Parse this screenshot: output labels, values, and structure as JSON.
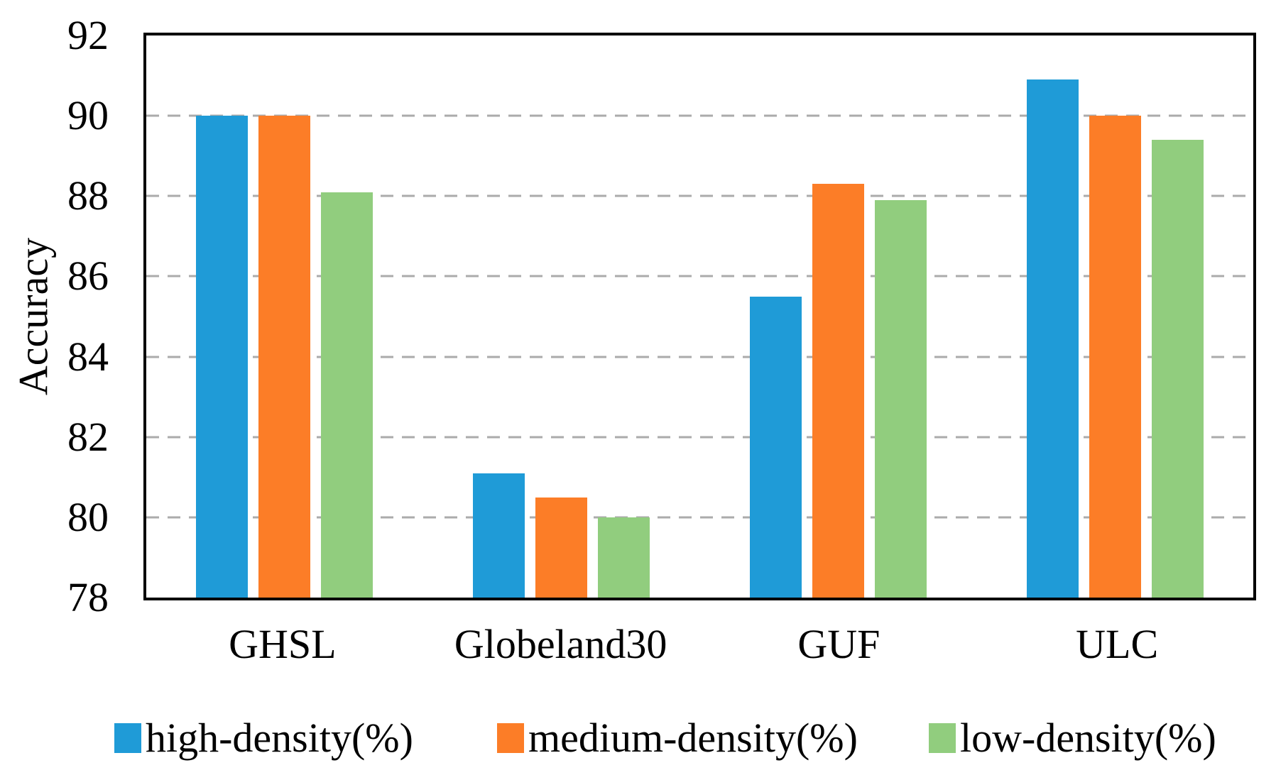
{
  "chart_data": {
    "type": "bar",
    "title": "",
    "xlabel": "",
    "ylabel": "Accuracy",
    "categories": [
      "GHSL",
      "Globeland30",
      "GUF",
      "ULC"
    ],
    "series": [
      {
        "name": "high-density(%)",
        "color": "#1F9BD7",
        "values": [
          90.0,
          81.1,
          85.5,
          90.9
        ]
      },
      {
        "name": "medium-density(%)",
        "color": "#FC7D27",
        "values": [
          90.0,
          80.5,
          88.3,
          90.0
        ]
      },
      {
        "name": "low-density(%)",
        "color": "#91CD7E",
        "values": [
          88.1,
          80.0,
          87.9,
          89.4
        ]
      }
    ],
    "ylim": [
      78,
      92
    ],
    "yticks": [
      78,
      80,
      82,
      84,
      86,
      88,
      90,
      92
    ],
    "gridlines": [
      80,
      82,
      84,
      86,
      88,
      90
    ],
    "grid": "dashed-horizontal",
    "legend_position": "bottom"
  },
  "colors": {
    "axis_border": "#000000",
    "gridline": "#ABABAB",
    "background": "#FFFFFF",
    "text": "#000000"
  }
}
